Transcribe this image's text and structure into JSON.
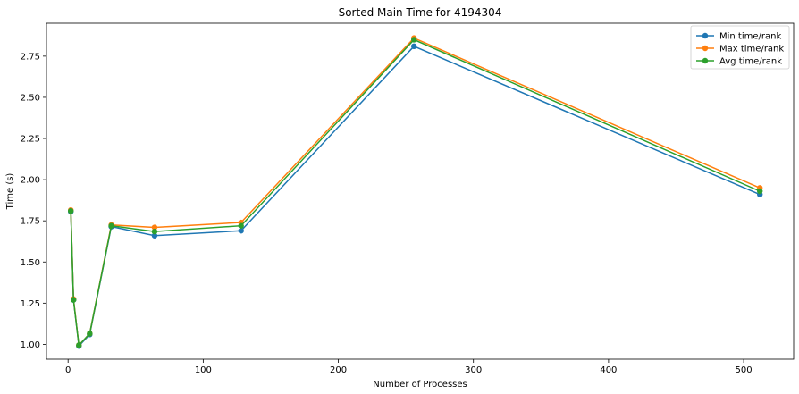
{
  "chart_data": {
    "type": "line",
    "title": "Sorted Main Time for 4194304",
    "xlabel": "Number of Processes",
    "ylabel": "Time (s)",
    "x": [
      2,
      4,
      8,
      16,
      32,
      64,
      128,
      256,
      512
    ],
    "xlim": [
      -16,
      537
    ],
    "ylim": [
      0.91,
      2.95
    ],
    "xticks": [
      0,
      100,
      200,
      300,
      400,
      500
    ],
    "yticks": [
      1.0,
      1.25,
      1.5,
      1.75,
      2.0,
      2.25,
      2.5,
      2.75
    ],
    "xtick_labels": [
      "0",
      "100",
      "200",
      "300",
      "400",
      "500"
    ],
    "ytick_labels": [
      "1.00",
      "1.25",
      "1.50",
      "1.75",
      "2.00",
      "2.25",
      "2.50",
      "2.75"
    ],
    "grid": false,
    "legend_position": "top-right",
    "series": [
      {
        "name": "Min time/rank",
        "color": "#1f77b4",
        "values": [
          1.805,
          1.27,
          0.99,
          1.06,
          1.715,
          1.66,
          1.69,
          2.81,
          1.91
        ]
      },
      {
        "name": "Max time/rank",
        "color": "#ff7f0e",
        "values": [
          1.815,
          1.275,
          0.995,
          1.065,
          1.725,
          1.71,
          1.74,
          2.86,
          1.95
        ]
      },
      {
        "name": "Avg time/rank",
        "color": "#2ca02c",
        "values": [
          1.81,
          1.27,
          0.995,
          1.065,
          1.72,
          1.685,
          1.72,
          2.85,
          1.93
        ]
      }
    ]
  }
}
